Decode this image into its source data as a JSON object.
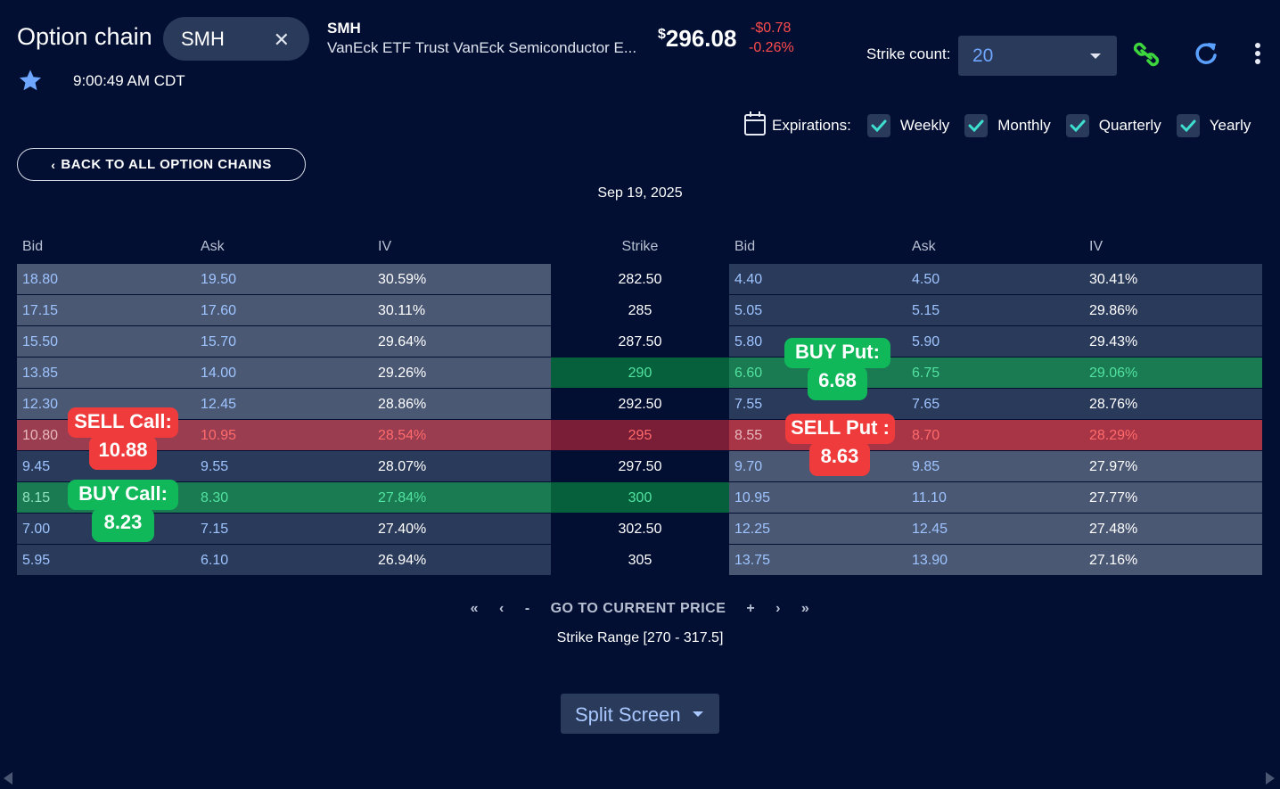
{
  "header": {
    "title": "Option chain",
    "symbol": "SMH",
    "clear_icon": "close-icon",
    "ticker": "SMH",
    "fullname": "VanEck ETF Trust VanEck Semiconductor E...",
    "price_prefix": "$",
    "price": "296.08",
    "change": "-$0.78",
    "change_pct": "-0.26%",
    "time": "9:00:49 AM CDT",
    "strike_count_label": "Strike count:",
    "strike_count_value": "20",
    "colors": {
      "change": "#ff4b4b",
      "link_icon": "#3dd63d",
      "refresh_icon": "#5aa0ff"
    }
  },
  "expirations": {
    "label": "Expirations:",
    "options": [
      {
        "label": "Weekly",
        "checked": true
      },
      {
        "label": "Monthly",
        "checked": true
      },
      {
        "label": "Quarterly",
        "checked": true
      },
      {
        "label": "Yearly",
        "checked": true
      }
    ]
  },
  "back_button": "BACK TO ALL OPTION CHAINS",
  "expiry_date": "Sep 19, 2025",
  "table": {
    "headers": {
      "call_bid": "Bid",
      "call_ask": "Ask",
      "call_iv": "IV",
      "strike": "Strike",
      "put_bid": "Bid",
      "put_ask": "Ask",
      "put_iv": "IV"
    },
    "rows": [
      {
        "cb": "18.80",
        "ca": "19.50",
        "civ": "30.59%",
        "k": "282.50",
        "pb": "4.40",
        "pa": "4.50",
        "piv": "30.41%",
        "hl": ""
      },
      {
        "cb": "17.15",
        "ca": "17.60",
        "civ": "30.11%",
        "k": "285",
        "pb": "5.05",
        "pa": "5.15",
        "piv": "29.86%",
        "hl": ""
      },
      {
        "cb": "15.50",
        "ca": "15.70",
        "civ": "29.64%",
        "k": "287.50",
        "pb": "5.80",
        "pa": "5.90",
        "piv": "29.43%",
        "hl": ""
      },
      {
        "cb": "13.85",
        "ca": "14.00",
        "civ": "29.26%",
        "k": "290",
        "pb": "6.60",
        "pa": "6.75",
        "piv": "29.06%",
        "hl": "put-green"
      },
      {
        "cb": "12.30",
        "ca": "12.45",
        "civ": "28.86%",
        "k": "292.50",
        "pb": "7.55",
        "pa": "7.65",
        "piv": "28.76%",
        "hl": ""
      },
      {
        "cb": "10.80",
        "ca": "10.95",
        "civ": "28.54%",
        "k": "295",
        "pb": "8.55",
        "pa": "8.70",
        "piv": "28.29%",
        "hl": "red"
      },
      {
        "cb": "9.45",
        "ca": "9.55",
        "civ": "28.07%",
        "k": "297.50",
        "pb": "9.70",
        "pa": "9.85",
        "piv": "27.97%",
        "hl": ""
      },
      {
        "cb": "8.15",
        "ca": "8.30",
        "civ": "27.84%",
        "k": "300",
        "pb": "10.95",
        "pa": "11.10",
        "piv": "27.77%",
        "hl": "call-green"
      },
      {
        "cb": "7.00",
        "ca": "7.15",
        "civ": "27.40%",
        "k": "302.50",
        "pb": "12.25",
        "pa": "12.45",
        "piv": "27.48%",
        "hl": ""
      },
      {
        "cb": "5.95",
        "ca": "6.10",
        "civ": "26.94%",
        "k": "305",
        "pb": "13.75",
        "pa": "13.90",
        "piv": "27.16%",
        "hl": ""
      }
    ]
  },
  "annotations": {
    "sell_call": {
      "line1": "SELL Call:",
      "line2": "10.88"
    },
    "buy_call": {
      "line1": "BUY Call:",
      "line2": "8.23"
    },
    "buy_put": {
      "line1": "BUY Put:",
      "line2": "6.68"
    },
    "sell_put": {
      "line1": "SELL Put :",
      "line2": "8.63"
    }
  },
  "pager": {
    "first": "«",
    "prev": "‹",
    "minus": "-",
    "current": "GO TO CURRENT PRICE",
    "plus": "+",
    "next": "›",
    "last": "»",
    "range": "Strike Range [270 - 317.5]"
  },
  "split_button": "Split Screen"
}
